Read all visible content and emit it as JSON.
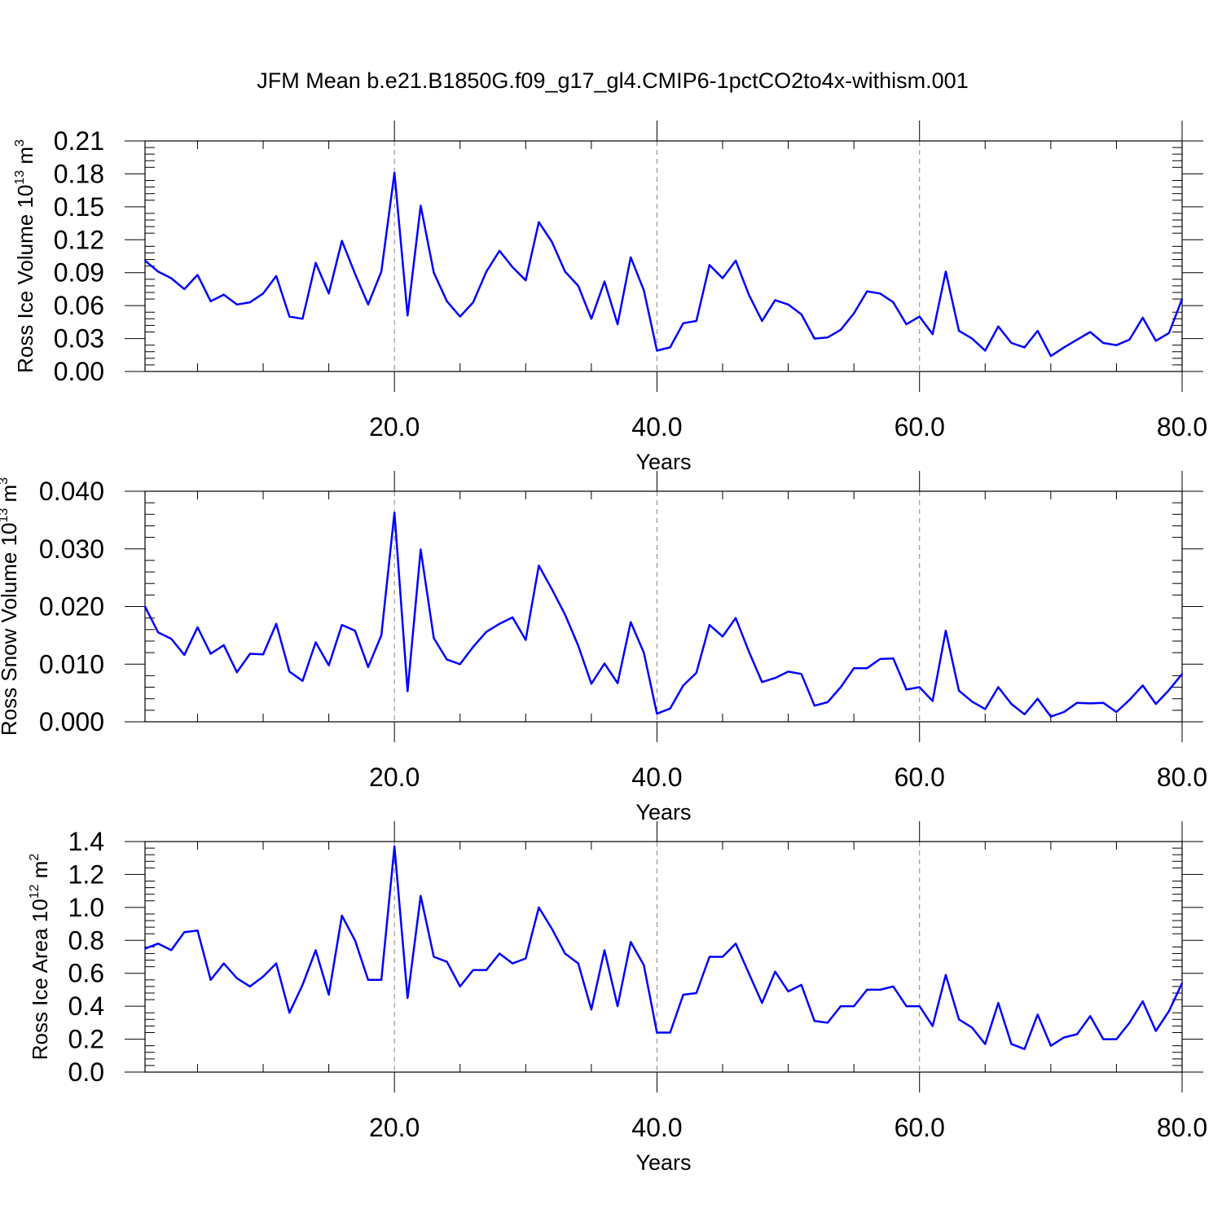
{
  "chart_data": {
    "title": "JFM Mean b.e21.B1850G.f09_g17_gl4.CMIP6-1pctCO2to4x-withism.001",
    "line_color": "#0000ff",
    "panels": [
      {
        "type": "line",
        "ylabel": "Ross Ice Volume 10",
        "ylabel_exp": "13",
        "ylabel_unit": " m",
        "ylabel_unit_exp": "3",
        "xlabel": "Years",
        "xlim": [
          1,
          80
        ],
        "ylim": [
          0,
          0.21
        ],
        "xticks": [
          "20.0",
          "40.0",
          "60.0",
          "80.0"
        ],
        "yticks": [
          "0.00",
          "0.03",
          "0.06",
          "0.09",
          "0.12",
          "0.15",
          "0.18",
          "0.21"
        ],
        "x": [
          1,
          2,
          3,
          4,
          5,
          6,
          7,
          8,
          9,
          10,
          11,
          12,
          13,
          14,
          15,
          16,
          17,
          18,
          19,
          20,
          21,
          22,
          23,
          24,
          25,
          26,
          27,
          28,
          29,
          30,
          31,
          32,
          33,
          34,
          35,
          36,
          37,
          38,
          39,
          40,
          41,
          42,
          43,
          44,
          45,
          46,
          47,
          48,
          49,
          50,
          51,
          52,
          53,
          54,
          55,
          56,
          57,
          58,
          59,
          60,
          61,
          62,
          63,
          64,
          65,
          66,
          67,
          68,
          69,
          70,
          71,
          72,
          73,
          74,
          75,
          76,
          77,
          78,
          79,
          80
        ],
        "values": [
          0.101,
          0.091,
          0.085,
          0.075,
          0.088,
          0.064,
          0.07,
          0.061,
          0.063,
          0.071,
          0.087,
          0.05,
          0.048,
          0.099,
          0.071,
          0.119,
          0.089,
          0.061,
          0.091,
          0.181,
          0.051,
          0.151,
          0.09,
          0.064,
          0.05,
          0.063,
          0.091,
          0.11,
          0.095,
          0.083,
          0.136,
          0.118,
          0.091,
          0.078,
          0.048,
          0.082,
          0.043,
          0.104,
          0.074,
          0.019,
          0.022,
          0.044,
          0.046,
          0.097,
          0.085,
          0.101,
          0.07,
          0.046,
          0.065,
          0.061,
          0.052,
          0.03,
          0.031,
          0.038,
          0.053,
          0.073,
          0.071,
          0.063,
          0.043,
          0.05,
          0.034,
          0.091,
          0.037,
          0.03,
          0.019,
          0.041,
          0.026,
          0.022,
          0.037,
          0.014,
          0.022,
          0.029,
          0.036,
          0.026,
          0.024,
          0.029,
          0.049,
          0.028,
          0.035,
          0.066
        ]
      },
      {
        "type": "line",
        "ylabel": "Ross Snow Volume 10",
        "ylabel_exp": "13",
        "ylabel_unit": " m",
        "ylabel_unit_exp": "3",
        "xlabel": "Years",
        "xlim": [
          1,
          80
        ],
        "ylim": [
          0,
          0.04
        ],
        "xticks": [
          "20.0",
          "40.0",
          "60.0",
          "80.0"
        ],
        "yticks": [
          "0.000",
          "0.010",
          "0.020",
          "0.030",
          "0.040"
        ],
        "x": [
          1,
          2,
          3,
          4,
          5,
          6,
          7,
          8,
          9,
          10,
          11,
          12,
          13,
          14,
          15,
          16,
          17,
          18,
          19,
          20,
          21,
          22,
          23,
          24,
          25,
          26,
          27,
          28,
          29,
          30,
          31,
          32,
          33,
          34,
          35,
          36,
          37,
          38,
          39,
          40,
          41,
          42,
          43,
          44,
          45,
          46,
          47,
          48,
          49,
          50,
          51,
          52,
          53,
          54,
          55,
          56,
          57,
          58,
          59,
          60,
          61,
          62,
          63,
          64,
          65,
          66,
          67,
          68,
          69,
          70,
          71,
          72,
          73,
          74,
          75,
          76,
          77,
          78,
          79,
          80
        ],
        "values": [
          0.02,
          0.0155,
          0.0144,
          0.0116,
          0.0164,
          0.0118,
          0.0133,
          0.0086,
          0.0118,
          0.0117,
          0.017,
          0.0087,
          0.0071,
          0.0138,
          0.0098,
          0.0168,
          0.0158,
          0.0095,
          0.015,
          0.0363,
          0.0053,
          0.0299,
          0.0145,
          0.0108,
          0.01,
          0.013,
          0.0156,
          0.017,
          0.0181,
          0.0142,
          0.0271,
          0.023,
          0.0186,
          0.0132,
          0.0066,
          0.0101,
          0.0067,
          0.0173,
          0.012,
          0.0014,
          0.0023,
          0.0063,
          0.0085,
          0.0168,
          0.0148,
          0.018,
          0.0122,
          0.0069,
          0.0076,
          0.0087,
          0.0083,
          0.0028,
          0.0034,
          0.006,
          0.0093,
          0.0093,
          0.0109,
          0.011,
          0.0056,
          0.006,
          0.0036,
          0.0158,
          0.0054,
          0.0035,
          0.0022,
          0.006,
          0.0031,
          0.0013,
          0.004,
          0.0009,
          0.0017,
          0.0033,
          0.0032,
          0.0033,
          0.0017,
          0.0038,
          0.0063,
          0.0031,
          0.0055,
          0.0083
        ]
      },
      {
        "type": "line",
        "ylabel": "Ross Ice Area 10",
        "ylabel_exp": "12",
        "ylabel_unit": " m",
        "ylabel_unit_exp": "2",
        "xlabel": "Years",
        "xlim": [
          1,
          80
        ],
        "ylim": [
          0,
          1.4
        ],
        "xticks": [
          "20.0",
          "40.0",
          "60.0",
          "80.0"
        ],
        "yticks": [
          "0.0",
          "0.2",
          "0.4",
          "0.6",
          "0.8",
          "1.0",
          "1.2",
          "1.4"
        ],
        "x": [
          1,
          2,
          3,
          4,
          5,
          6,
          7,
          8,
          9,
          10,
          11,
          12,
          13,
          14,
          15,
          16,
          17,
          18,
          19,
          20,
          21,
          22,
          23,
          24,
          25,
          26,
          27,
          28,
          29,
          30,
          31,
          32,
          33,
          34,
          35,
          36,
          37,
          38,
          39,
          40,
          41,
          42,
          43,
          44,
          45,
          46,
          47,
          48,
          49,
          50,
          51,
          52,
          53,
          54,
          55,
          56,
          57,
          58,
          59,
          60,
          61,
          62,
          63,
          64,
          65,
          66,
          67,
          68,
          69,
          70,
          71,
          72,
          73,
          74,
          75,
          76,
          77,
          78,
          79,
          80
        ],
        "values": [
          0.75,
          0.78,
          0.74,
          0.85,
          0.86,
          0.56,
          0.66,
          0.57,
          0.52,
          0.58,
          0.66,
          0.36,
          0.53,
          0.74,
          0.47,
          0.95,
          0.8,
          0.56,
          0.56,
          1.37,
          0.45,
          1.07,
          0.7,
          0.67,
          0.52,
          0.62,
          0.62,
          0.72,
          0.66,
          0.69,
          1.0,
          0.87,
          0.72,
          0.66,
          0.38,
          0.74,
          0.4,
          0.79,
          0.65,
          0.24,
          0.24,
          0.47,
          0.48,
          0.7,
          0.7,
          0.78,
          0.6,
          0.42,
          0.61,
          0.49,
          0.53,
          0.31,
          0.3,
          0.4,
          0.4,
          0.5,
          0.5,
          0.52,
          0.4,
          0.4,
          0.28,
          0.59,
          0.32,
          0.27,
          0.17,
          0.42,
          0.17,
          0.14,
          0.35,
          0.16,
          0.21,
          0.23,
          0.34,
          0.2,
          0.2,
          0.3,
          0.43,
          0.25,
          0.37,
          0.54
        ]
      }
    ]
  }
}
